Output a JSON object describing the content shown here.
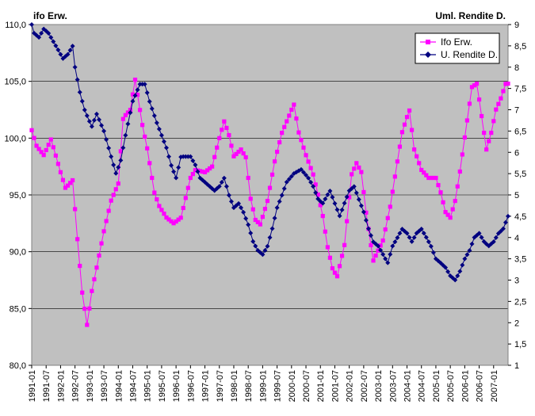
{
  "chart_data": {
    "type": "line",
    "left_axis_title": "ifo Erw.",
    "right_axis_title": "Uml. Rendite D.",
    "y_left": {
      "min": 80,
      "max": 110,
      "step": 5,
      "tick_labels": [
        "80,0",
        "85,0",
        "90,0",
        "95,0",
        "100,0",
        "105,0",
        "110,0"
      ]
    },
    "y_right": {
      "min": 1,
      "max": 9,
      "step": 0.5,
      "tick_labels": [
        "1",
        "1,5",
        "2",
        "2,5",
        "3",
        "3,5",
        "4",
        "4,5",
        "5",
        "5,5",
        "6",
        "6,5",
        "7",
        "7,5",
        "8",
        "8,5",
        "9"
      ]
    },
    "x_tick_labels": [
      "1991-01",
      "1991-07",
      "1992-01",
      "1992-07",
      "1993-01",
      "1993-07",
      "1994-01",
      "1994-07",
      "1995-01",
      "1995-07",
      "1996-01",
      "1996-07",
      "1997-01",
      "1997-07",
      "1998-01",
      "1998-07",
      "1999-01",
      "1999-07",
      "2000-01",
      "2000-07",
      "2001-01",
      "2001-07",
      "2002-01",
      "2002-07",
      "2003-01",
      "2003-07",
      "2004-01",
      "2004-07",
      "2005-01",
      "2005-07",
      "2006-01",
      "2006-07",
      "2007-01"
    ],
    "legend_position": "top-right",
    "grid": "horizontal",
    "colors": {
      "plot_bg": "#c0c0c0",
      "ifo": "#ff00ff",
      "rendite": "#000080"
    },
    "series": [
      {
        "name": "Ifo Erw.",
        "axis": "left",
        "marker": "square",
        "anchors": [
          [
            1991.0,
            100.7
          ],
          [
            1991.17,
            99.3
          ],
          [
            1991.42,
            98.5
          ],
          [
            1991.67,
            99.9
          ],
          [
            1992.0,
            97.0
          ],
          [
            1992.17,
            95.6
          ],
          [
            1992.42,
            96.3
          ],
          [
            1992.58,
            91.2
          ],
          [
            1992.75,
            86.4
          ],
          [
            1992.92,
            83.5
          ],
          [
            1993.08,
            86.5
          ],
          [
            1993.25,
            88.6
          ],
          [
            1993.5,
            91.8
          ],
          [
            1993.75,
            94.5
          ],
          [
            1994.0,
            96.0
          ],
          [
            1994.17,
            101.8
          ],
          [
            1994.42,
            102.5
          ],
          [
            1994.58,
            105.2
          ],
          [
            1994.83,
            101.2
          ],
          [
            1995.0,
            99.1
          ],
          [
            1995.25,
            95.2
          ],
          [
            1995.42,
            94.0
          ],
          [
            1995.67,
            93.0
          ],
          [
            1995.92,
            92.5
          ],
          [
            1996.17,
            93.0
          ],
          [
            1996.5,
            96.5
          ],
          [
            1996.67,
            97.2
          ],
          [
            1997.0,
            97.0
          ],
          [
            1997.25,
            97.5
          ],
          [
            1997.5,
            100.0
          ],
          [
            1997.67,
            101.5
          ],
          [
            1997.83,
            100.3
          ],
          [
            1998.0,
            98.4
          ],
          [
            1998.25,
            99.0
          ],
          [
            1998.42,
            98.3
          ],
          [
            1998.58,
            94.7
          ],
          [
            1998.75,
            92.8
          ],
          [
            1998.92,
            92.4
          ],
          [
            1999.17,
            94.5
          ],
          [
            1999.42,
            98.0
          ],
          [
            1999.67,
            100.5
          ],
          [
            1999.92,
            102.0
          ],
          [
            2000.08,
            103.0
          ],
          [
            2000.25,
            100.5
          ],
          [
            2000.5,
            98.5
          ],
          [
            2000.75,
            96.8
          ],
          [
            2000.92,
            95.0
          ],
          [
            2001.08,
            93.2
          ],
          [
            2001.25,
            90.4
          ],
          [
            2001.42,
            88.5
          ],
          [
            2001.58,
            87.8
          ],
          [
            2001.83,
            90.5
          ],
          [
            2002.08,
            96.8
          ],
          [
            2002.25,
            97.8
          ],
          [
            2002.42,
            97.0
          ],
          [
            2002.58,
            93.5
          ],
          [
            2002.83,
            89.2
          ],
          [
            2003.17,
            91.0
          ],
          [
            2003.42,
            94.0
          ],
          [
            2003.67,
            98.0
          ],
          [
            2003.83,
            100.5
          ],
          [
            2004.08,
            102.5
          ],
          [
            2004.25,
            99.0
          ],
          [
            2004.5,
            97.2
          ],
          [
            2004.75,
            96.5
          ],
          [
            2005.0,
            96.5
          ],
          [
            2005.17,
            95.2
          ],
          [
            2005.33,
            93.5
          ],
          [
            2005.5,
            93.0
          ],
          [
            2005.67,
            94.5
          ],
          [
            2005.83,
            97.0
          ],
          [
            2006.08,
            101.5
          ],
          [
            2006.25,
            104.5
          ],
          [
            2006.42,
            104.8
          ],
          [
            2006.58,
            102.0
          ],
          [
            2006.75,
            99.0
          ],
          [
            2006.92,
            100.5
          ],
          [
            2007.08,
            102.5
          ],
          [
            2007.25,
            103.5
          ],
          [
            2007.42,
            104.8
          ]
        ]
      },
      {
        "name": "U. Rendite D.",
        "axis": "right",
        "marker": "diamond",
        "anchors": [
          [
            1991.0,
            9.0
          ],
          [
            1991.08,
            8.8
          ],
          [
            1991.25,
            8.7
          ],
          [
            1991.42,
            8.9
          ],
          [
            1991.58,
            8.8
          ],
          [
            1991.75,
            8.6
          ],
          [
            1991.92,
            8.4
          ],
          [
            1992.08,
            8.2
          ],
          [
            1992.25,
            8.3
          ],
          [
            1992.42,
            8.5
          ],
          [
            1992.5,
            8.0
          ],
          [
            1992.67,
            7.4
          ],
          [
            1992.83,
            7.0
          ],
          [
            1993.08,
            6.6
          ],
          [
            1993.25,
            6.9
          ],
          [
            1993.5,
            6.5
          ],
          [
            1993.75,
            5.9
          ],
          [
            1993.92,
            5.5
          ],
          [
            1994.08,
            5.8
          ],
          [
            1994.25,
            6.4
          ],
          [
            1994.5,
            7.2
          ],
          [
            1994.75,
            7.6
          ],
          [
            1994.92,
            7.6
          ],
          [
            1995.08,
            7.2
          ],
          [
            1995.33,
            6.7
          ],
          [
            1995.5,
            6.4
          ],
          [
            1995.67,
            6.1
          ],
          [
            1995.83,
            5.7
          ],
          [
            1996.0,
            5.4
          ],
          [
            1996.17,
            5.9
          ],
          [
            1996.5,
            5.9
          ],
          [
            1996.67,
            5.7
          ],
          [
            1996.83,
            5.4
          ],
          [
            1997.0,
            5.3
          ],
          [
            1997.33,
            5.1
          ],
          [
            1997.5,
            5.2
          ],
          [
            1997.67,
            5.4
          ],
          [
            1997.83,
            5.0
          ],
          [
            1998.0,
            4.7
          ],
          [
            1998.17,
            4.8
          ],
          [
            1998.33,
            4.6
          ],
          [
            1998.5,
            4.3
          ],
          [
            1998.67,
            3.9
          ],
          [
            1998.83,
            3.7
          ],
          [
            1999.0,
            3.6
          ],
          [
            1999.17,
            3.8
          ],
          [
            1999.33,
            4.2
          ],
          [
            1999.5,
            4.7
          ],
          [
            1999.67,
            5.0
          ],
          [
            1999.83,
            5.3
          ],
          [
            2000.08,
            5.5
          ],
          [
            2000.33,
            5.6
          ],
          [
            2000.58,
            5.4
          ],
          [
            2000.75,
            5.2
          ],
          [
            2000.92,
            4.9
          ],
          [
            2001.08,
            4.8
          ],
          [
            2001.33,
            5.1
          ],
          [
            2001.5,
            4.8
          ],
          [
            2001.67,
            4.5
          ],
          [
            2001.83,
            4.8
          ],
          [
            2002.0,
            5.1
          ],
          [
            2002.17,
            5.2
          ],
          [
            2002.33,
            4.9
          ],
          [
            2002.5,
            4.6
          ],
          [
            2002.67,
            4.2
          ],
          [
            2002.83,
            3.9
          ],
          [
            2003.0,
            3.8
          ],
          [
            2003.17,
            3.6
          ],
          [
            2003.33,
            3.4
          ],
          [
            2003.5,
            3.8
          ],
          [
            2003.67,
            4.0
          ],
          [
            2003.83,
            4.2
          ],
          [
            2004.0,
            4.1
          ],
          [
            2004.17,
            3.9
          ],
          [
            2004.33,
            4.1
          ],
          [
            2004.5,
            4.2
          ],
          [
            2004.67,
            4.0
          ],
          [
            2004.83,
            3.8
          ],
          [
            2005.0,
            3.5
          ],
          [
            2005.17,
            3.4
          ],
          [
            2005.33,
            3.3
          ],
          [
            2005.5,
            3.1
          ],
          [
            2005.67,
            3.0
          ],
          [
            2005.83,
            3.2
          ],
          [
            2006.0,
            3.5
          ],
          [
            2006.17,
            3.7
          ],
          [
            2006.33,
            4.0
          ],
          [
            2006.5,
            4.1
          ],
          [
            2006.67,
            3.9
          ],
          [
            2006.83,
            3.8
          ],
          [
            2007.0,
            3.9
          ],
          [
            2007.17,
            4.1
          ],
          [
            2007.33,
            4.2
          ],
          [
            2007.5,
            4.5
          ]
        ]
      }
    ]
  }
}
